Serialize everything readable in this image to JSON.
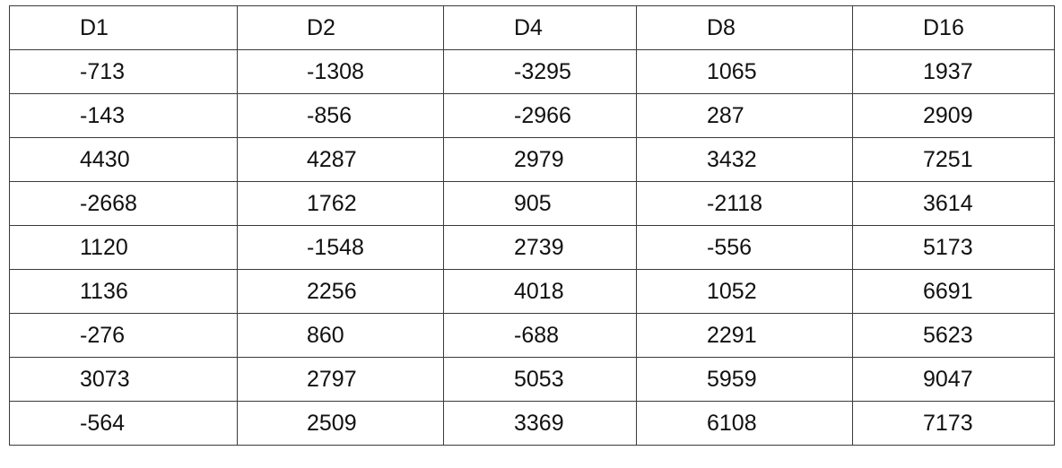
{
  "table": {
    "headers": [
      "D1",
      "D2",
      "D4",
      "D8",
      "D16"
    ],
    "rows": [
      [
        "-713",
        "-1308",
        "-3295",
        "1065",
        "1937"
      ],
      [
        "-143",
        "-856",
        "-2966",
        "287",
        "2909"
      ],
      [
        "4430",
        "4287",
        "2979",
        "3432",
        "7251"
      ],
      [
        "-2668",
        "1762",
        "905",
        "-2118",
        "3614"
      ],
      [
        "1120",
        "-1548",
        "2739",
        "-556",
        "5173"
      ],
      [
        "1136",
        "2256",
        "4018",
        "1052",
        "6691"
      ],
      [
        "-276",
        "860",
        "-688",
        "2291",
        "5623"
      ],
      [
        "3073",
        "2797",
        "5053",
        "5959",
        "9047"
      ],
      [
        "-564",
        "2509",
        "3369",
        "6108",
        "7173"
      ]
    ]
  }
}
